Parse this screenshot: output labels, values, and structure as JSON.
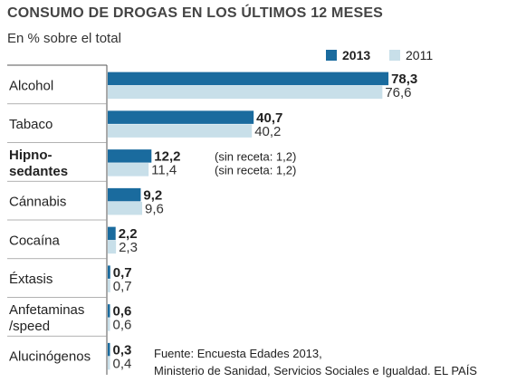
{
  "chart_data": {
    "type": "bar",
    "orientation": "horizontal",
    "title": "CONSUMO DE DROGAS EN LOS ÚLTIMOS 12 MESES",
    "subtitle": "En % sobre el total",
    "categories": [
      {
        "label": [
          "Alcohol"
        ],
        "bold": false
      },
      {
        "label": [
          "Tabaco"
        ],
        "bold": false
      },
      {
        "label": [
          "Hipno-",
          "sedantes"
        ],
        "bold": true
      },
      {
        "label": [
          "Cánnabis"
        ],
        "bold": false
      },
      {
        "label": [
          "Cocaína"
        ],
        "bold": false
      },
      {
        "label": [
          "Éxtasis"
        ],
        "bold": false
      },
      {
        "label": [
          "Anfetaminas",
          "/speed"
        ],
        "bold": false
      },
      {
        "label": [
          "Alucinógenos"
        ],
        "bold": false
      }
    ],
    "series": [
      {
        "name": "2013",
        "color": "#1a6b9e",
        "values": [
          78.3,
          40.7,
          12.2,
          9.2,
          2.2,
          0.7,
          0.6,
          0.3
        ],
        "labels": [
          "78,3",
          "40,7",
          "12,2",
          "9,2",
          "2,2",
          "0,7",
          "0,6",
          "0,3"
        ]
      },
      {
        "name": "2011",
        "color": "#c8dfe9",
        "values": [
          76.6,
          40.2,
          11.4,
          9.6,
          2.3,
          0.7,
          0.6,
          0.4
        ],
        "labels": [
          "76,6",
          "40,2",
          "11,4",
          "9,6",
          "2,3",
          "0,7",
          "0,6",
          "0,4"
        ]
      }
    ],
    "annotations": [
      {
        "category_index": 2,
        "series_index": 0,
        "text": "(sin receta: 1,2)"
      },
      {
        "category_index": 2,
        "series_index": 1,
        "text": "(sin receta: 1,2)"
      }
    ],
    "xlim": [
      0,
      100
    ],
    "grid": false,
    "legend_position": "top-right"
  },
  "footer": {
    "line1": "Fuente: Encuesta Edades 2013,",
    "line2": "Ministerio de Sanidad, Servicios Sociales e Igualdad.  EL PAÍS"
  }
}
